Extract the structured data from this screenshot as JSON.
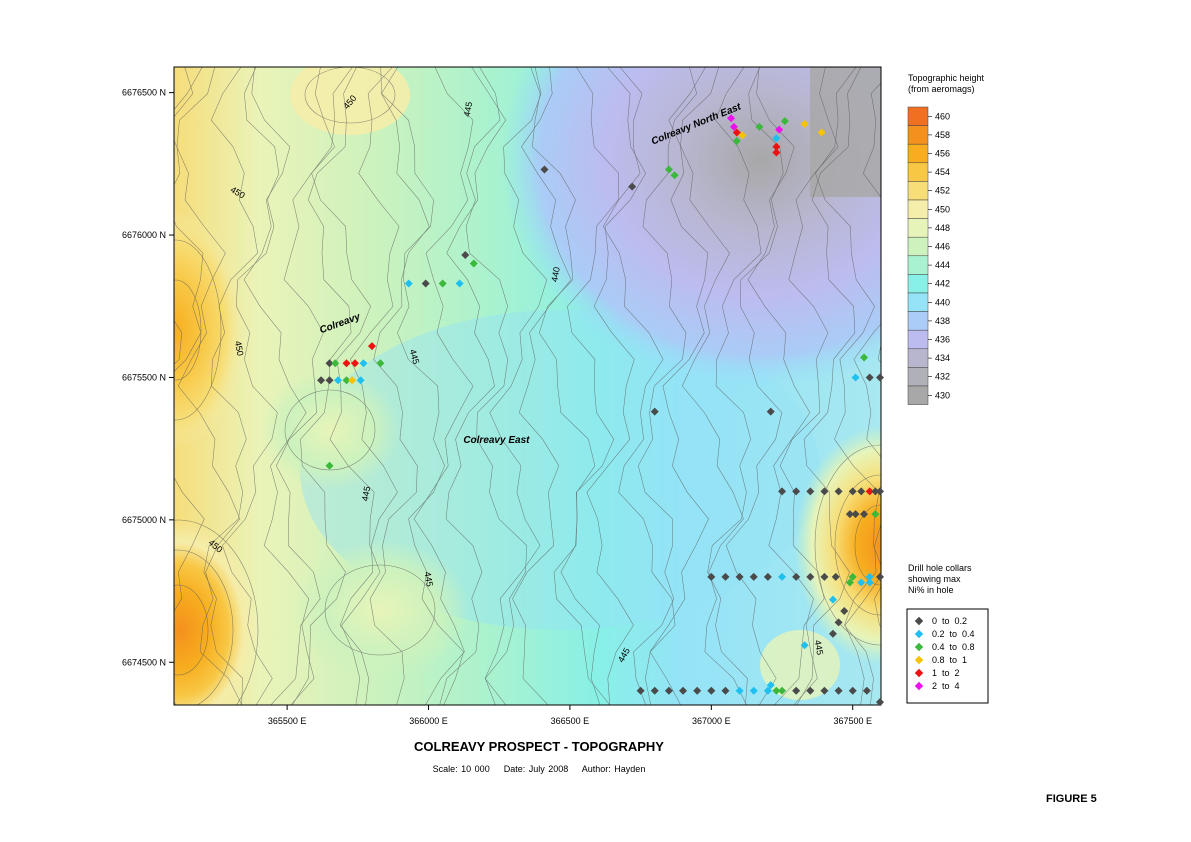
{
  "title": "COLREAVY PROSPECT - TOPOGRAPHY",
  "subtitle": {
    "scale": "Scale: 10 000",
    "date": "Date: July 2008",
    "author": "Author: Hayden"
  },
  "figure_label": "FIGURE 5",
  "x_axis": {
    "ticks": [
      {
        "value": 365500,
        "label": "365500 E"
      },
      {
        "value": 366000,
        "label": "366000 E"
      },
      {
        "value": 366500,
        "label": "366500 E"
      },
      {
        "value": 367000,
        "label": "367000 E"
      },
      {
        "value": 367500,
        "label": "367500 E"
      }
    ],
    "range": [
      365100,
      367600
    ]
  },
  "y_axis": {
    "ticks": [
      {
        "value": 6676500,
        "label": "6676500 N"
      },
      {
        "value": 6676000,
        "label": "6676000 N"
      },
      {
        "value": 6675500,
        "label": "6675500 N"
      },
      {
        "value": 6675000,
        "label": "6675000 N"
      },
      {
        "value": 6674500,
        "label": "6674500 N"
      }
    ],
    "range": [
      6674350,
      6676590
    ]
  },
  "place_labels": [
    {
      "text": "Colreavy",
      "x": 365690,
      "y": 6675680,
      "rotate": -20
    },
    {
      "text": "Colreavy East",
      "x": 366240,
      "y": 6675270,
      "rotate": 0
    },
    {
      "text": "Colreavy North East",
      "x": 366950,
      "y": 6676380,
      "rotate": -22
    }
  ],
  "contour_labels": [
    {
      "text": "450",
      "x": 365320,
      "y": 6676140,
      "rotate": 30
    },
    {
      "text": "450",
      "x": 365320,
      "y": 6675600,
      "rotate": 80
    },
    {
      "text": "450",
      "x": 365730,
      "y": 6676460,
      "rotate": -50
    },
    {
      "text": "450",
      "x": 365240,
      "y": 6674900,
      "rotate": 40
    },
    {
      "text": "445",
      "x": 366150,
      "y": 6676440,
      "rotate": -80
    },
    {
      "text": "445",
      "x": 365940,
      "y": 6675570,
      "rotate": 75
    },
    {
      "text": "445",
      "x": 365790,
      "y": 6675090,
      "rotate": -80
    },
    {
      "text": "445",
      "x": 365990,
      "y": 6674790,
      "rotate": 80
    },
    {
      "text": "445",
      "x": 366700,
      "y": 6674520,
      "rotate": -60
    },
    {
      "text": "445",
      "x": 367370,
      "y": 6674550,
      "rotate": 80
    },
    {
      "text": "440",
      "x": 366460,
      "y": 6675860,
      "rotate": -80
    }
  ],
  "topo_legend": {
    "title_line1": "Topographic height",
    "title_line2": "(from aeromags)",
    "levels": [
      {
        "label": "460",
        "color": "#f06f20"
      },
      {
        "label": "458",
        "color": "#f4901e"
      },
      {
        "label": "456",
        "color": "#f7ad1f"
      },
      {
        "label": "454",
        "color": "#f8c744"
      },
      {
        "label": "452",
        "color": "#f7de77"
      },
      {
        "label": "450",
        "color": "#f5edaa"
      },
      {
        "label": "448",
        "color": "#e7f4b9"
      },
      {
        "label": "446",
        "color": "#cdf2bd"
      },
      {
        "label": "444",
        "color": "#a9f2cf"
      },
      {
        "label": "442",
        "color": "#88f0e6"
      },
      {
        "label": "440",
        "color": "#94e3f7"
      },
      {
        "label": "438",
        "color": "#aaccf6"
      },
      {
        "label": "436",
        "color": "#bcbcf0"
      },
      {
        "label": "434",
        "color": "#b8b6cf"
      },
      {
        "label": "432",
        "color": "#b0b0b8"
      },
      {
        "label": "430",
        "color": "#a8a8a8"
      }
    ]
  },
  "collar_legend": {
    "title_line1": "Drill hole collars",
    "title_line2": "showing max",
    "title_line3": "Ni% in hole",
    "classes": [
      {
        "label": "0  to  0.2",
        "color": "#4a4a4a"
      },
      {
        "label": "0.2  to  0.4",
        "color": "#1fc0f0"
      },
      {
        "label": "0.4  to  0.8",
        "color": "#3cb83c"
      },
      {
        "label": "0.8  to  1",
        "color": "#f7c300"
      },
      {
        "label": "1  to  2",
        "color": "#ee1111"
      },
      {
        "label": "2  to  4",
        "color": "#ee11ee"
      }
    ]
  },
  "drill_holes": [
    {
      "x": 365620,
      "y": 6675490,
      "c": 0
    },
    {
      "x": 365650,
      "y": 6675490,
      "c": 0
    },
    {
      "x": 365680,
      "y": 6675490,
      "c": 1
    },
    {
      "x": 365710,
      "y": 6675490,
      "c": 2
    },
    {
      "x": 365730,
      "y": 6675490,
      "c": 3
    },
    {
      "x": 365760,
      "y": 6675490,
      "c": 1
    },
    {
      "x": 365650,
      "y": 6675550,
      "c": 0
    },
    {
      "x": 365670,
      "y": 6675550,
      "c": 2
    },
    {
      "x": 365710,
      "y": 6675550,
      "c": 4
    },
    {
      "x": 365740,
      "y": 6675550,
      "c": 4
    },
    {
      "x": 365770,
      "y": 6675550,
      "c": 1
    },
    {
      "x": 365800,
      "y": 6675610,
      "c": 4
    },
    {
      "x": 365830,
      "y": 6675550,
      "c": 2
    },
    {
      "x": 365650,
      "y": 6675190,
      "c": 2
    },
    {
      "x": 365930,
      "y": 6675830,
      "c": 1
    },
    {
      "x": 365990,
      "y": 6675830,
      "c": 0
    },
    {
      "x": 366050,
      "y": 6675830,
      "c": 2
    },
    {
      "x": 366110,
      "y": 6675830,
      "c": 1
    },
    {
      "x": 366130,
      "y": 6675930,
      "c": 0
    },
    {
      "x": 366160,
      "y": 6675900,
      "c": 2
    },
    {
      "x": 366410,
      "y": 6676230,
      "c": 0
    },
    {
      "x": 366720,
      "y": 6676170,
      "c": 0
    },
    {
      "x": 366850,
      "y": 6676230,
      "c": 2
    },
    {
      "x": 366870,
      "y": 6676210,
      "c": 2
    },
    {
      "x": 367070,
      "y": 6676410,
      "c": 5
    },
    {
      "x": 367080,
      "y": 6676380,
      "c": 5
    },
    {
      "x": 367090,
      "y": 6676360,
      "c": 4
    },
    {
      "x": 367110,
      "y": 6676350,
      "c": 3
    },
    {
      "x": 367090,
      "y": 6676330,
      "c": 2
    },
    {
      "x": 367170,
      "y": 6676380,
      "c": 2
    },
    {
      "x": 367240,
      "y": 6676370,
      "c": 5
    },
    {
      "x": 367230,
      "y": 6676340,
      "c": 1
    },
    {
      "x": 367260,
      "y": 6676400,
      "c": 2
    },
    {
      "x": 367330,
      "y": 6676390,
      "c": 3
    },
    {
      "x": 367390,
      "y": 6676360,
      "c": 3
    },
    {
      "x": 367230,
      "y": 6676310,
      "c": 4
    },
    {
      "x": 367230,
      "y": 6676290,
      "c": 4
    },
    {
      "x": 366800,
      "y": 6675380,
      "c": 0
    },
    {
      "x": 367210,
      "y": 6675380,
      "c": 0
    },
    {
      "x": 367540,
      "y": 6675570,
      "c": 2
    },
    {
      "x": 367510,
      "y": 6675500,
      "c": 1
    },
    {
      "x": 367560,
      "y": 6675500,
      "c": 0
    },
    {
      "x": 367600,
      "y": 6675500,
      "c": 0
    },
    {
      "x": 367250,
      "y": 6675100,
      "c": 0
    },
    {
      "x": 367300,
      "y": 6675100,
      "c": 0
    },
    {
      "x": 367350,
      "y": 6675100,
      "c": 0
    },
    {
      "x": 367400,
      "y": 6675100,
      "c": 0
    },
    {
      "x": 367450,
      "y": 6675100,
      "c": 0
    },
    {
      "x": 367500,
      "y": 6675100,
      "c": 0
    },
    {
      "x": 367530,
      "y": 6675100,
      "c": 0
    },
    {
      "x": 367560,
      "y": 6675100,
      "c": 4
    },
    {
      "x": 367580,
      "y": 6675100,
      "c": 0
    },
    {
      "x": 367600,
      "y": 6675100,
      "c": 0
    },
    {
      "x": 367490,
      "y": 6675020,
      "c": 0
    },
    {
      "x": 367510,
      "y": 6675020,
      "c": 0
    },
    {
      "x": 367540,
      "y": 6675020,
      "c": 0
    },
    {
      "x": 367580,
      "y": 6675020,
      "c": 2
    },
    {
      "x": 367000,
      "y": 6674800,
      "c": 0
    },
    {
      "x": 367050,
      "y": 6674800,
      "c": 0
    },
    {
      "x": 367100,
      "y": 6674800,
      "c": 0
    },
    {
      "x": 367150,
      "y": 6674800,
      "c": 0
    },
    {
      "x": 367200,
      "y": 6674800,
      "c": 0
    },
    {
      "x": 367250,
      "y": 6674800,
      "c": 1
    },
    {
      "x": 367300,
      "y": 6674800,
      "c": 0
    },
    {
      "x": 367350,
      "y": 6674800,
      "c": 0
    },
    {
      "x": 367400,
      "y": 6674800,
      "c": 0
    },
    {
      "x": 367440,
      "y": 6674800,
      "c": 0
    },
    {
      "x": 367490,
      "y": 6674780,
      "c": 2
    },
    {
      "x": 367500,
      "y": 6674800,
      "c": 2
    },
    {
      "x": 367530,
      "y": 6674780,
      "c": 1
    },
    {
      "x": 367560,
      "y": 6674780,
      "c": 1
    },
    {
      "x": 367560,
      "y": 6674800,
      "c": 1
    },
    {
      "x": 367600,
      "y": 6674800,
      "c": 0
    },
    {
      "x": 367430,
      "y": 6674720,
      "c": 1
    },
    {
      "x": 367470,
      "y": 6674680,
      "c": 0
    },
    {
      "x": 367450,
      "y": 6674640,
      "c": 0
    },
    {
      "x": 367430,
      "y": 6674600,
      "c": 0
    },
    {
      "x": 367330,
      "y": 6674560,
      "c": 1
    },
    {
      "x": 366750,
      "y": 6674400,
      "c": 0
    },
    {
      "x": 366800,
      "y": 6674400,
      "c": 0
    },
    {
      "x": 366850,
      "y": 6674400,
      "c": 0
    },
    {
      "x": 366900,
      "y": 6674400,
      "c": 0
    },
    {
      "x": 366950,
      "y": 6674400,
      "c": 0
    },
    {
      "x": 367000,
      "y": 6674400,
      "c": 0
    },
    {
      "x": 367050,
      "y": 6674400,
      "c": 0
    },
    {
      "x": 367100,
      "y": 6674400,
      "c": 1
    },
    {
      "x": 367150,
      "y": 6674400,
      "c": 1
    },
    {
      "x": 367200,
      "y": 6674400,
      "c": 1
    },
    {
      "x": 367210,
      "y": 6674420,
      "c": 1
    },
    {
      "x": 367230,
      "y": 6674400,
      "c": 2
    },
    {
      "x": 367250,
      "y": 6674400,
      "c": 2
    },
    {
      "x": 367300,
      "y": 6674400,
      "c": 0
    },
    {
      "x": 367350,
      "y": 6674400,
      "c": 0
    },
    {
      "x": 367400,
      "y": 6674400,
      "c": 0
    },
    {
      "x": 367450,
      "y": 6674400,
      "c": 0
    },
    {
      "x": 367500,
      "y": 6674400,
      "c": 0
    },
    {
      "x": 367550,
      "y": 6674400,
      "c": 0
    },
    {
      "x": 367600,
      "y": 6674360,
      "c": 0
    }
  ]
}
